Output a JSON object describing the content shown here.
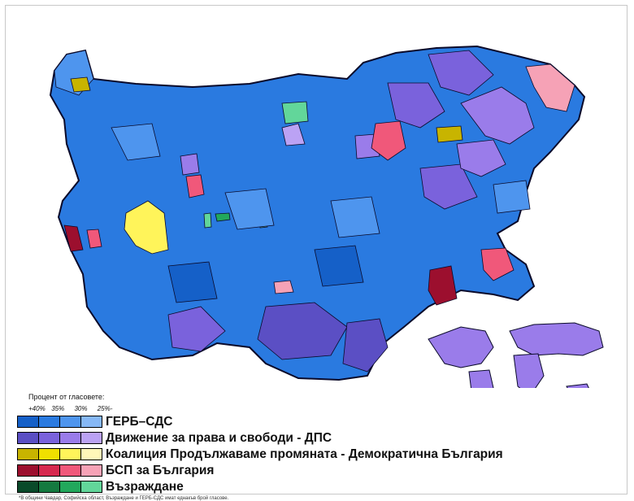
{
  "legend": {
    "title": "Процент от гласовете:",
    "headers": [
      "+40%",
      "35%",
      "30%",
      "25%-"
    ],
    "entries": [
      {
        "label": "ГЕРБ–СДС",
        "colors": [
          "#1560c8",
          "#2a7ae0",
          "#4e95ee",
          "#86b8f6"
        ]
      },
      {
        "label": "Движение за права и свободи - ДПС",
        "colors": [
          "#5b4fc4",
          "#7a62dc",
          "#9a7cea",
          "#bba2f4"
        ]
      },
      {
        "label": "Коалиция Продължаваме промяната - Демократична България",
        "colors": [
          "#c8b400",
          "#f0e000",
          "#fff45a",
          "#fff7b8"
        ]
      },
      {
        "label": "БСП за България",
        "colors": [
          "#9c0f2e",
          "#d6284e",
          "#f0587a",
          "#f6a2b6"
        ]
      },
      {
        "label": "Възраждане",
        "colors": [
          "#0a4a2a",
          "#147a40",
          "#22a85c",
          "#62d69a"
        ]
      }
    ],
    "footnote": "*В общини Чавдар, Софийска област, Възраждане и ГЕРБ-СДС имат еднакъв брой гласове."
  },
  "map": {
    "default_color": "#2a7ae0",
    "border_color": "#0a0a2a"
  }
}
